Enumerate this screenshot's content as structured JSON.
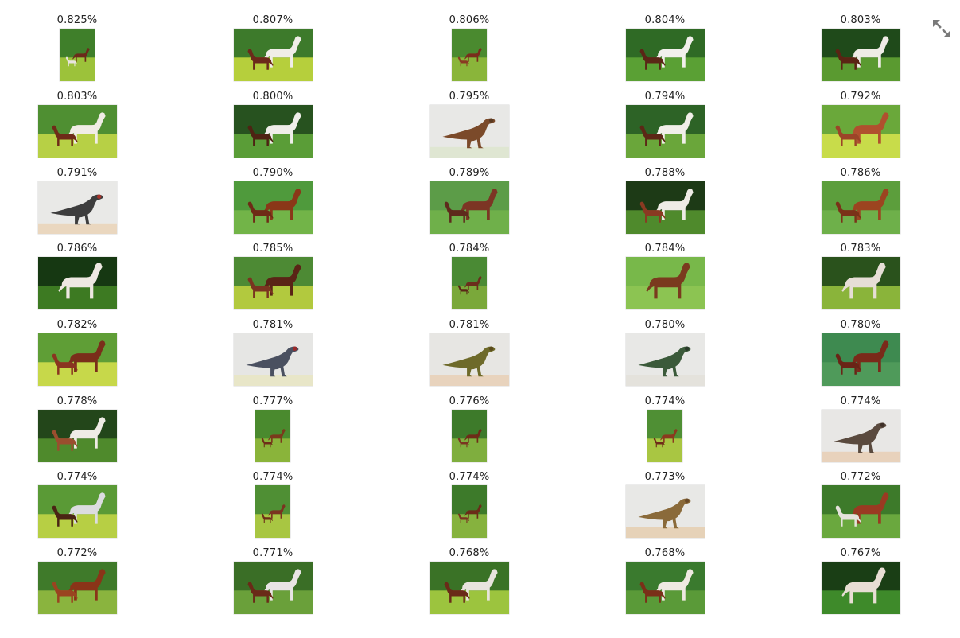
{
  "toolbar": {
    "expand_icon": "expand-arrows-icon"
  },
  "results": [
    {
      "score": "0.825%",
      "subject": "mare-and-foal",
      "orientation": "portrait",
      "bg": "#3f7f2a",
      "ground": "#9cc23a",
      "animal_color": "#6b2a1a",
      "second_color": "#e8e4de"
    },
    {
      "score": "0.807%",
      "subject": "mare-and-foal",
      "orientation": "landscape",
      "bg": "#3d7a2b",
      "ground": "#b6cf3c",
      "animal_color": "#f0ede8",
      "second_color": "#6b2a1a"
    },
    {
      "score": "0.806%",
      "subject": "mare-and-foal",
      "orientation": "portrait",
      "bg": "#4a8a2f",
      "ground": "#8ab53a",
      "animal_color": "#7a2d1c",
      "second_color": "#8a3a22"
    },
    {
      "score": "0.804%",
      "subject": "mare-and-foal",
      "orientation": "landscape",
      "bg": "#2f6a25",
      "ground": "#5aa034",
      "animal_color": "#f2f0ec",
      "second_color": "#5a2616"
    },
    {
      "score": "0.803%",
      "subject": "mare-and-foal",
      "orientation": "landscape",
      "bg": "#1f4a1a",
      "ground": "#5a9a30",
      "animal_color": "#efece6",
      "second_color": "#5a2414"
    },
    {
      "score": "0.803%",
      "subject": "mare-and-foal",
      "orientation": "landscape",
      "bg": "#4f8f32",
      "ground": "#b7d045",
      "animal_color": "#f0ece5",
      "second_color": "#6e2b18"
    },
    {
      "score": "0.800%",
      "subject": "mare-and-foal",
      "orientation": "landscape",
      "bg": "#27521f",
      "ground": "#5a9d37",
      "animal_color": "#efeee9",
      "second_color": "#4e2313"
    },
    {
      "score": "0.795%",
      "subject": "dinosaur",
      "orientation": "landscape",
      "bg": "#e8e8e6",
      "ground": "#dfe6d2",
      "animal_color": "#7b4a2a",
      "second_color": "#5a3a22"
    },
    {
      "score": "0.794%",
      "subject": "mare-and-foal",
      "orientation": "landscape",
      "bg": "#2d6326",
      "ground": "#6aa63a",
      "animal_color": "#f1efe9",
      "second_color": "#5c2716"
    },
    {
      "score": "0.792%",
      "subject": "mare-and-foal",
      "orientation": "landscape",
      "bg": "#6aa83a",
      "ground": "#c8dc4a",
      "animal_color": "#b0502e",
      "second_color": "#9c4428"
    },
    {
      "score": "0.791%",
      "subject": "dinosaur",
      "orientation": "landscape",
      "bg": "#e9e9e7",
      "ground": "#ead7bf",
      "animal_color": "#3d3d3d",
      "second_color": "#a8322a"
    },
    {
      "score": "0.790%",
      "subject": "mare-and-foal",
      "orientation": "landscape",
      "bg": "#4f9a3c",
      "ground": "#72b448",
      "animal_color": "#8a3718",
      "second_color": "#6e2b16"
    },
    {
      "score": "0.789%",
      "subject": "mare-and-foal",
      "orientation": "landscape",
      "bg": "#5c9c48",
      "ground": "#6fb04a",
      "animal_color": "#7c3524",
      "second_color": "#5e2a1c"
    },
    {
      "score": "0.788%",
      "subject": "mare-and-foal",
      "orientation": "landscape",
      "bg": "#1d3a16",
      "ground": "#4f8a2c",
      "animal_color": "#efece6",
      "second_color": "#8a3a22"
    },
    {
      "score": "0.786%",
      "subject": "mare-and-foal",
      "orientation": "landscape",
      "bg": "#5c9e3c",
      "ground": "#6eb04a",
      "animal_color": "#9c4420",
      "second_color": "#7a3218"
    },
    {
      "score": "0.786%",
      "subject": "single-horse",
      "orientation": "landscape",
      "bg": "#163812",
      "ground": "#3d7a22",
      "animal_color": "#eee8e2",
      "second_color": "#eee8e2"
    },
    {
      "score": "0.785%",
      "subject": "mare-and-foal",
      "orientation": "landscape",
      "bg": "#4d8a34",
      "ground": "#b2c93e",
      "animal_color": "#5a2416",
      "second_color": "#7a3420"
    },
    {
      "score": "0.784%",
      "subject": "mare-and-foal",
      "orientation": "portrait",
      "bg": "#4a8a34",
      "ground": "#7aa83a",
      "animal_color": "#6b2d1c",
      "second_color": "#5a2616"
    },
    {
      "score": "0.784%",
      "subject": "single-horse",
      "orientation": "landscape",
      "bg": "#78b84a",
      "ground": "#8cc452",
      "animal_color": "#7a3a1e",
      "second_color": "#7a3a1e"
    },
    {
      "score": "0.783%",
      "subject": "single-horse",
      "orientation": "landscape",
      "bg": "#2a521c",
      "ground": "#8ab43a",
      "animal_color": "#e6ded6",
      "second_color": "#e6ded6"
    },
    {
      "score": "0.782%",
      "subject": "mare-and-foal",
      "orientation": "landscape",
      "bg": "#5f9e36",
      "ground": "#c7d84a",
      "animal_color": "#7a2e1a",
      "second_color": "#8a3420"
    },
    {
      "score": "0.781%",
      "subject": "dinosaur",
      "orientation": "landscape",
      "bg": "#e6e6e4",
      "ground": "#e8e6c8",
      "animal_color": "#4a5060",
      "second_color": "#9a2a2a"
    },
    {
      "score": "0.781%",
      "subject": "dinosaur",
      "orientation": "landscape",
      "bg": "#e7e6e3",
      "ground": "#e8d3bd",
      "animal_color": "#6e6a2a",
      "second_color": "#5a4a1c"
    },
    {
      "score": "0.780%",
      "subject": "dinosaur",
      "orientation": "landscape",
      "bg": "#e8e8e6",
      "ground": "#e4e2dc",
      "animal_color": "#3b5a3a",
      "second_color": "#2a3a2a"
    },
    {
      "score": "0.780%",
      "subject": "mare-and-foal",
      "orientation": "landscape",
      "bg": "#3e8a50",
      "ground": "#4f9a5a",
      "animal_color": "#7a2a1a",
      "second_color": "#6a2416"
    },
    {
      "score": "0.778%",
      "subject": "mare-and-foal",
      "orientation": "landscape",
      "bg": "#23461a",
      "ground": "#4f8a2c",
      "animal_color": "#efebe5",
      "second_color": "#9a4e2e"
    },
    {
      "score": "0.777%",
      "subject": "mare-and-foal",
      "orientation": "portrait",
      "bg": "#4a8a2e",
      "ground": "#8ab43a",
      "animal_color": "#7a3a1c",
      "second_color": "#6e2e18"
    },
    {
      "score": "0.776%",
      "subject": "mare-and-foal",
      "orientation": "portrait",
      "bg": "#3d7a2a",
      "ground": "#7fae3e",
      "animal_color": "#6e2b18",
      "second_color": "#7a3420"
    },
    {
      "score": "0.774%",
      "subject": "mare-and-foal",
      "orientation": "portrait",
      "bg": "#4f8f34",
      "ground": "#a9c642",
      "animal_color": "#8a3a1e",
      "second_color": "#6e2b18"
    },
    {
      "score": "0.774%",
      "subject": "dinosaur",
      "orientation": "landscape",
      "bg": "#e8e7e5",
      "ground": "#e8d2bc",
      "animal_color": "#5a4a3e",
      "second_color": "#3e3028"
    },
    {
      "score": "0.774%",
      "subject": "mare-and-foal",
      "orientation": "landscape",
      "bg": "#5a9a36",
      "ground": "#b7cf44",
      "animal_color": "#dcdce0",
      "second_color": "#4a2414"
    },
    {
      "score": "0.774%",
      "subject": "mare-and-foal",
      "orientation": "portrait",
      "bg": "#4f8f34",
      "ground": "#a8c642",
      "animal_color": "#7a3420",
      "second_color": "#6e2e18"
    },
    {
      "score": "0.774%",
      "subject": "mare-and-foal",
      "orientation": "portrait",
      "bg": "#3d7a2a",
      "ground": "#86b23e",
      "animal_color": "#6b2b18",
      "second_color": "#7a3420"
    },
    {
      "score": "0.773%",
      "subject": "dinosaur",
      "orientation": "landscape",
      "bg": "#e8e8e6",
      "ground": "#e6d2b8",
      "animal_color": "#8a6a3a",
      "second_color": "#6a4a28"
    },
    {
      "score": "0.772%",
      "subject": "mare-and-foal",
      "orientation": "landscape",
      "bg": "#3d7a2a",
      "ground": "#6aa83e",
      "animal_color": "#9a3a22",
      "second_color": "#e6e2dc"
    },
    {
      "score": "0.772%",
      "subject": "mare-and-foal",
      "orientation": "landscape",
      "bg": "#3f7a2a",
      "ground": "#8ab43e",
      "animal_color": "#8a3418",
      "second_color": "#9a4420"
    },
    {
      "score": "0.771%",
      "subject": "mare-and-foal",
      "orientation": "landscape",
      "bg": "#3a6e26",
      "ground": "#6aa03a",
      "animal_color": "#e8e4e4",
      "second_color": "#6a2a18"
    },
    {
      "score": "0.768%",
      "subject": "mare-and-foal",
      "orientation": "landscape",
      "bg": "#3a7226",
      "ground": "#9cc43e",
      "animal_color": "#e8e4de",
      "second_color": "#6a2a18"
    },
    {
      "score": "0.768%",
      "subject": "mare-and-foal",
      "orientation": "landscape",
      "bg": "#3a7a2e",
      "ground": "#5a9a38",
      "animal_color": "#efe9e2",
      "second_color": "#7a3018"
    },
    {
      "score": "0.767%",
      "subject": "single-horse",
      "orientation": "landscape",
      "bg": "#1a3e15",
      "ground": "#3e8a2a",
      "animal_color": "#e8ded4",
      "second_color": "#e8ded4"
    }
  ]
}
